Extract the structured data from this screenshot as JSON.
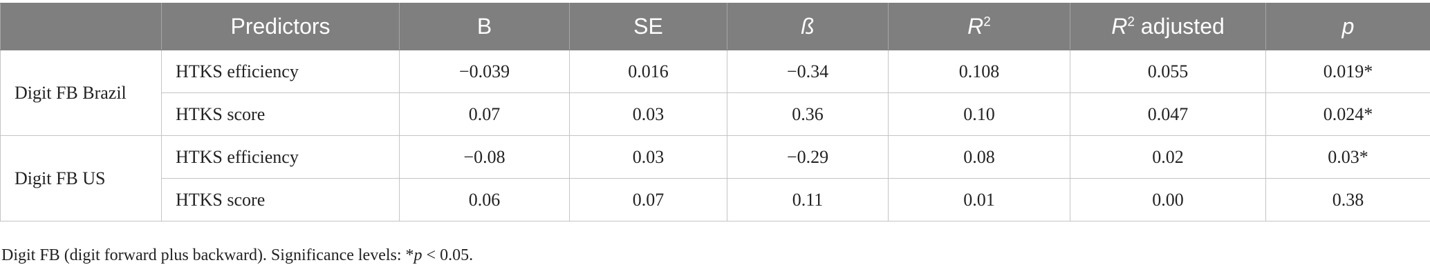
{
  "table": {
    "headers": {
      "col0": "",
      "predictors": "Predictors",
      "b": "B",
      "se": "SE",
      "beta": "ß",
      "r2_letter": "R",
      "r2_sup": "2",
      "r2adj_letter": "R",
      "r2adj_sup": "2",
      "r2adj_rest": " adjusted",
      "p": "p"
    },
    "groups": [
      {
        "label": "Digit FB Brazil",
        "rows": [
          {
            "predictor": "HTKS efficiency",
            "b": "−0.039",
            "se": "0.016",
            "beta": "−0.34",
            "r2": "0.108",
            "r2_adj": "0.055",
            "p": "0.019*"
          },
          {
            "predictor": "HTKS score",
            "b": "0.07",
            "se": "0.03",
            "beta": "0.36",
            "r2": "0.10",
            "r2_adj": "0.047",
            "p": "0.024*"
          }
        ]
      },
      {
        "label": "Digit FB US",
        "rows": [
          {
            "predictor": "HTKS efficiency",
            "b": "−0.08",
            "se": "0.03",
            "beta": "−0.29",
            "r2": "0.08",
            "r2_adj": "0.02",
            "p": "0.03*"
          },
          {
            "predictor": "HTKS score",
            "b": "0.06",
            "se": "0.07",
            "beta": "0.11",
            "r2": "0.01",
            "r2_adj": "0.00",
            "p": "0.38"
          }
        ]
      }
    ]
  },
  "footnote": {
    "text_before": "Digit FB (digit forward plus backward). Significance levels: *",
    "italic": "p",
    "text_after": " < 0.05."
  }
}
